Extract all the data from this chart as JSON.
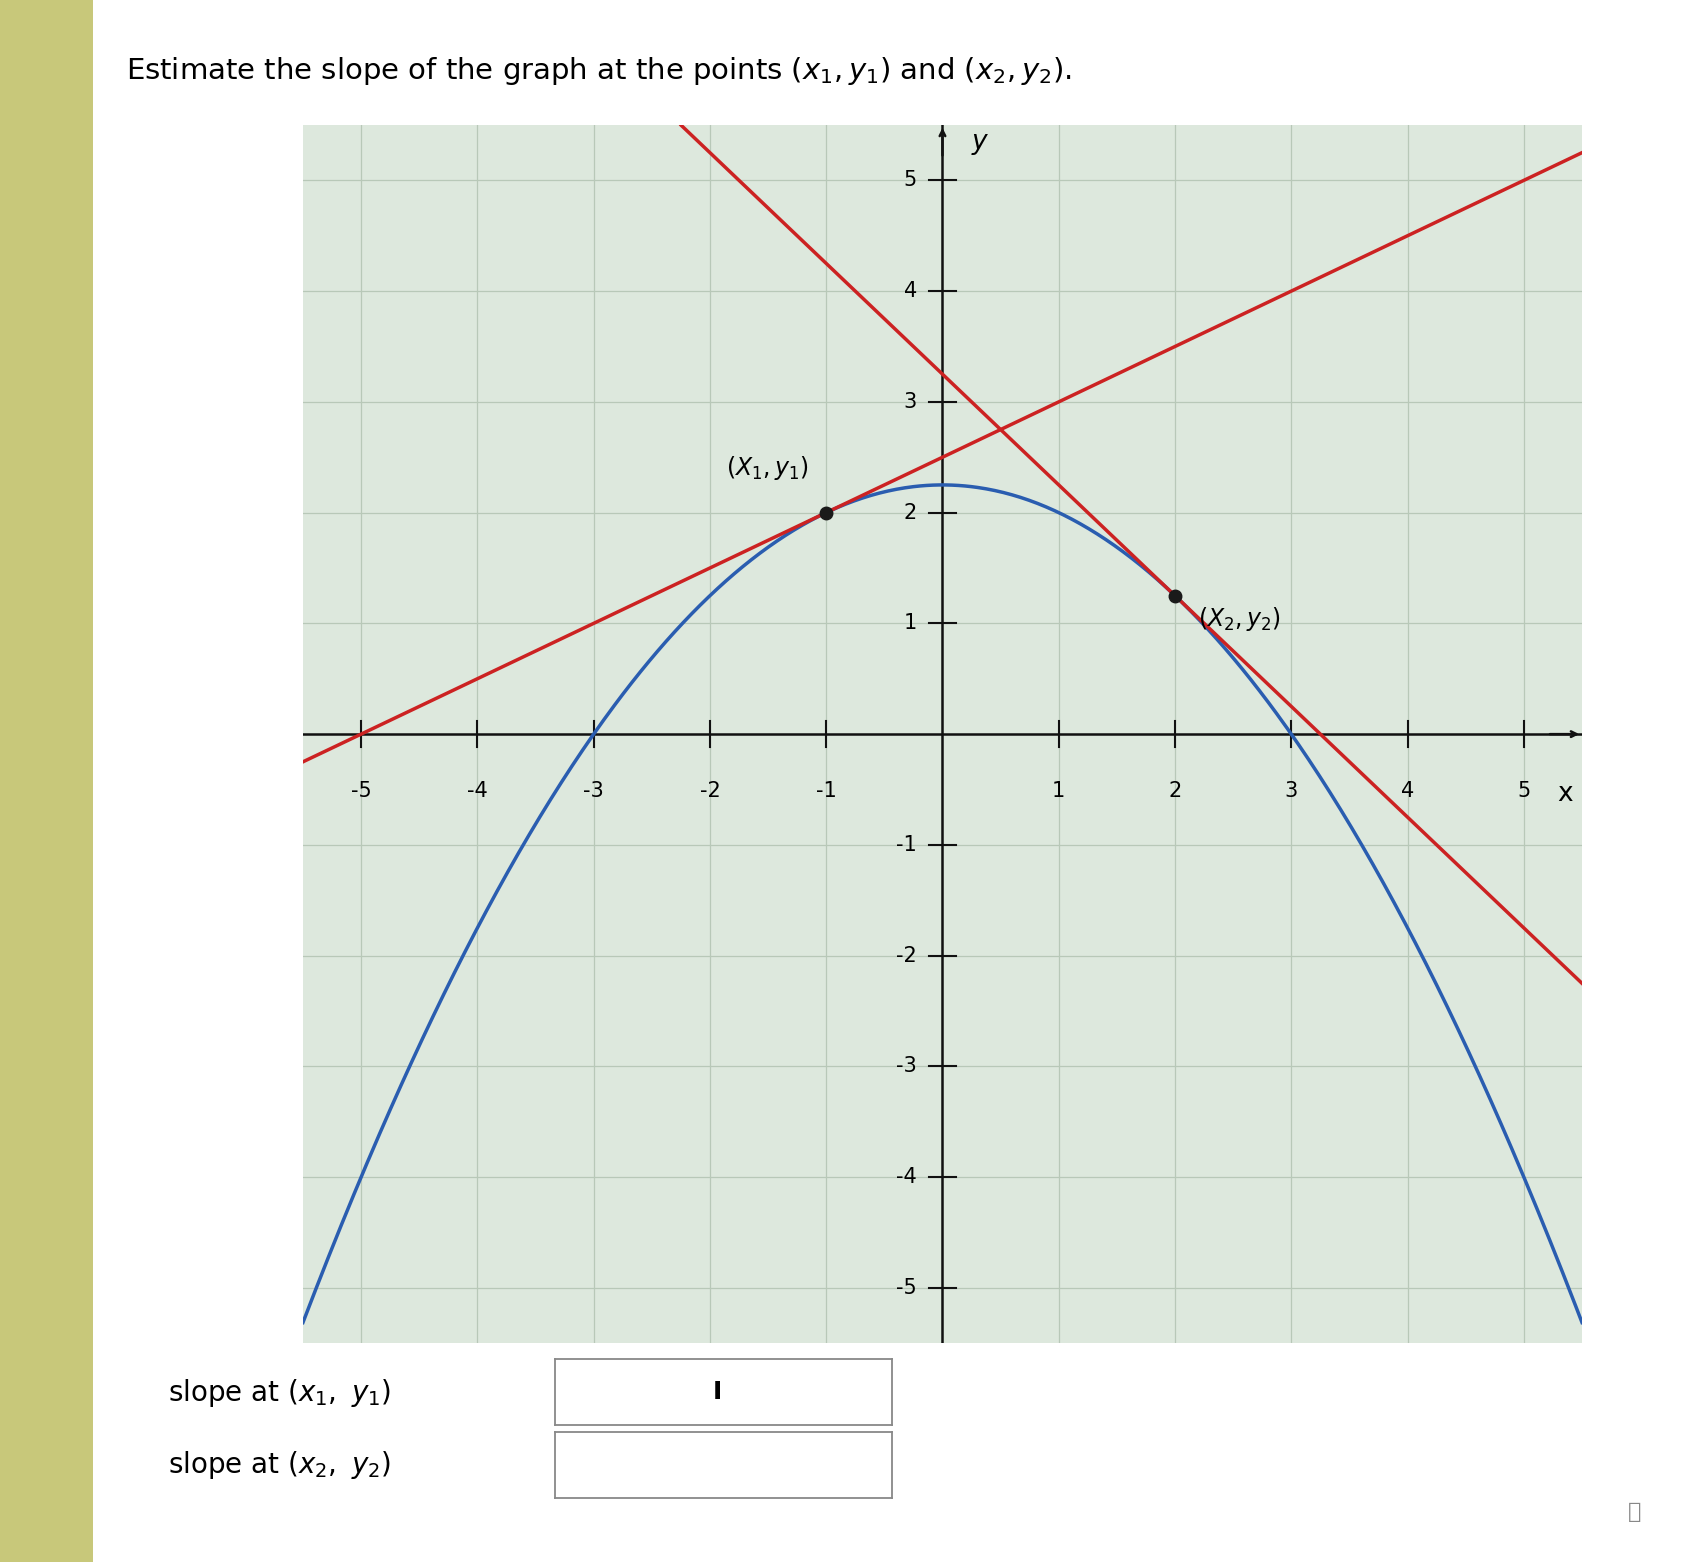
{
  "title_plain": "Estimate the slope of the graph at the points (",
  "bg_color": "#f7f7f2",
  "content_bg": "#ffffff",
  "plot_bg_color": "#dde8dd",
  "curve_color": "#2a5db0",
  "tangent_color": "#cc2222",
  "point_color": "#1a1a1a",
  "a_coef": -0.25,
  "c_coef": 2.25,
  "p1x": -1.0,
  "p2x": 2.0,
  "xlim": [
    -5.5,
    5.5
  ],
  "ylim": [
    -5.5,
    5.5
  ],
  "xticks": [
    -5,
    -4,
    -3,
    -2,
    -1,
    1,
    2,
    3,
    4,
    5
  ],
  "yticks": [
    -5,
    -4,
    -3,
    -2,
    -1,
    1,
    2,
    3,
    4,
    5
  ],
  "xlabel": "x",
  "ylabel": "y",
  "left_panel_color": "#c8c87a",
  "grid_color": "#b8c8b8",
  "axis_color": "#111111",
  "curve_linewidth": 2.5,
  "tangent_linewidth": 2.5,
  "tick_fontsize": 15,
  "label_fontsize": 17,
  "point_label1": "( X₁ , y₁ )",
  "point_label2": "( X₂ , y₂ )",
  "markersize": 9
}
